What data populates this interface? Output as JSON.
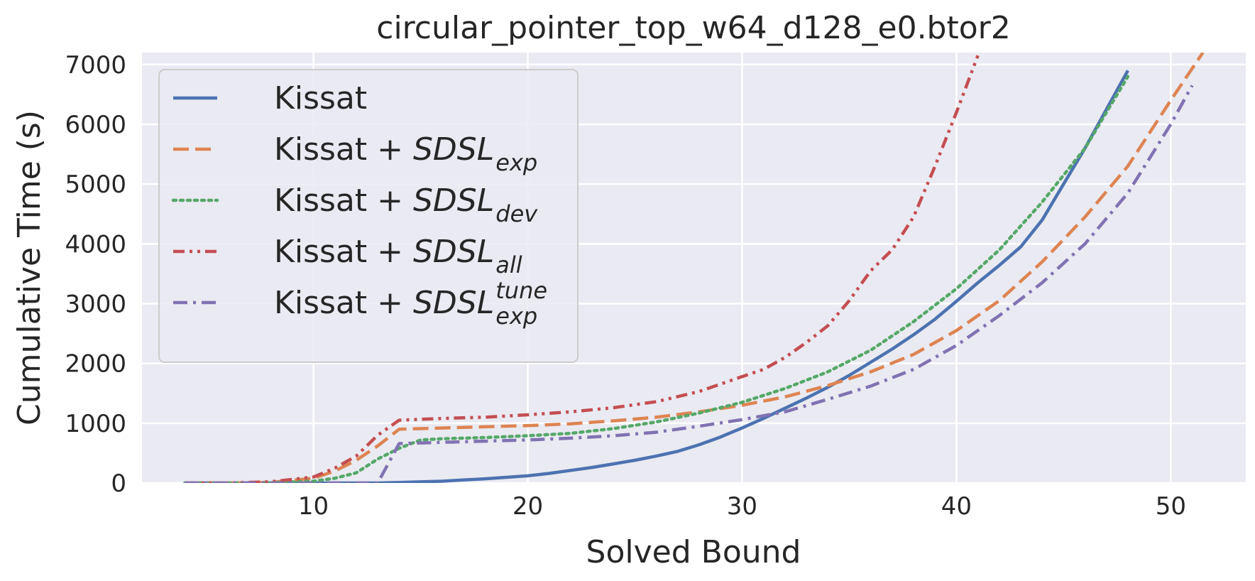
{
  "chart_data": {
    "type": "line",
    "title": "circular_pointer_top_w64_d128_e0.btor2",
    "xlabel": "Solved Bound",
    "ylabel": "Cumulative Time (s)",
    "xlim": [
      2,
      53.5
    ],
    "ylim": [
      0,
      7200
    ],
    "xticks": [
      10,
      20,
      30,
      40,
      50
    ],
    "yticks": [
      0,
      1000,
      2000,
      3000,
      4000,
      5000,
      6000,
      7000
    ],
    "grid": true,
    "legend_position": "top-left",
    "background": "#EAEAF2",
    "series": [
      {
        "name": "Kissat",
        "name_parts": {
          "prefix": "Kissat",
          "math": "",
          "sub": "",
          "sup": ""
        },
        "color": "#4C72B0",
        "style": "solid",
        "x": [
          4,
          6,
          8,
          10,
          12,
          13,
          14,
          16,
          17,
          18,
          19,
          20,
          21,
          22,
          23,
          24,
          25,
          26,
          27,
          28,
          29,
          30,
          31,
          32,
          33,
          34,
          35,
          36,
          37,
          38,
          39,
          40,
          41,
          42,
          43,
          44,
          45,
          46,
          47,
          48
        ],
        "y": [
          0,
          0,
          0,
          0,
          0,
          0,
          10,
          30,
          50,
          70,
          95,
          120,
          160,
          210,
          260,
          320,
          380,
          450,
          530,
          640,
          770,
          920,
          1080,
          1250,
          1420,
          1600,
          1800,
          2020,
          2240,
          2480,
          2740,
          3040,
          3350,
          3640,
          3950,
          4400,
          5000,
          5600,
          6250,
          6900
        ]
      },
      {
        "name": "Kissat + SDSL_exp",
        "name_parts": {
          "prefix": "Kissat + ",
          "math": "SDSL",
          "sub": "exp",
          "sup": ""
        },
        "color": "#DD8452",
        "style": "dashed",
        "x": [
          4,
          6,
          8,
          10,
          11,
          12,
          13,
          14,
          16,
          18,
          20,
          22,
          24,
          26,
          28,
          30,
          32,
          34,
          36,
          38,
          40,
          42,
          44,
          46,
          48,
          50,
          51.5
        ],
        "y": [
          0,
          0,
          10,
          80,
          200,
          380,
          620,
          900,
          920,
          940,
          960,
          990,
          1040,
          1100,
          1190,
          1300,
          1440,
          1630,
          1860,
          2150,
          2550,
          3050,
          3700,
          4450,
          5300,
          6400,
          7200
        ]
      },
      {
        "name": "Kissat + SDSL_dev",
        "name_parts": {
          "prefix": "Kissat + ",
          "math": "SDSL",
          "sub": "dev",
          "sup": ""
        },
        "color": "#55A868",
        "style": "dotted",
        "x": [
          4,
          6,
          8,
          10,
          11,
          12,
          13,
          14,
          15,
          16,
          18,
          20,
          22,
          24,
          26,
          28,
          30,
          32,
          34,
          36,
          38,
          40,
          42,
          44,
          46,
          48
        ],
        "y": [
          0,
          0,
          5,
          30,
          80,
          170,
          400,
          580,
          720,
          740,
          760,
          790,
          830,
          910,
          1020,
          1170,
          1350,
          1580,
          1860,
          2220,
          2700,
          3250,
          3900,
          4700,
          5600,
          6800
        ]
      },
      {
        "name": "Kissat + SDSL_all",
        "name_parts": {
          "prefix": "Kissat + ",
          "math": "SDSL",
          "sub": "all",
          "sup": ""
        },
        "color": "#C44E52",
        "style": "dashdotdot",
        "x": [
          4,
          6,
          8,
          10,
          11,
          12,
          13,
          14,
          16,
          18,
          20,
          22,
          24,
          26,
          28,
          30,
          31,
          32,
          33,
          34,
          35,
          36,
          37,
          38,
          39,
          40,
          41
        ],
        "y": [
          0,
          0,
          20,
          100,
          250,
          450,
          800,
          1050,
          1080,
          1100,
          1140,
          1190,
          1260,
          1360,
          1530,
          1780,
          1900,
          2100,
          2350,
          2630,
          3050,
          3550,
          3900,
          4450,
          5300,
          6200,
          7150
        ]
      },
      {
        "name": "Kissat + SDSL_exp^tune",
        "name_parts": {
          "prefix": "Kissat + ",
          "math": "SDSL",
          "sub": "exp",
          "sup": "tune"
        },
        "color": "#8172B2",
        "style": "dashdot",
        "x": [
          4,
          6,
          8,
          10,
          12,
          13,
          14,
          16,
          18,
          20,
          22,
          24,
          26,
          28,
          30,
          32,
          34,
          36,
          38,
          40,
          42,
          44,
          46,
          48,
          50,
          51
        ],
        "y": [
          0,
          0,
          0,
          0,
          0,
          0,
          660,
          680,
          700,
          720,
          750,
          790,
          850,
          950,
          1060,
          1190,
          1400,
          1620,
          1900,
          2300,
          2800,
          3350,
          4000,
          4850,
          6000,
          6650
        ]
      }
    ]
  }
}
